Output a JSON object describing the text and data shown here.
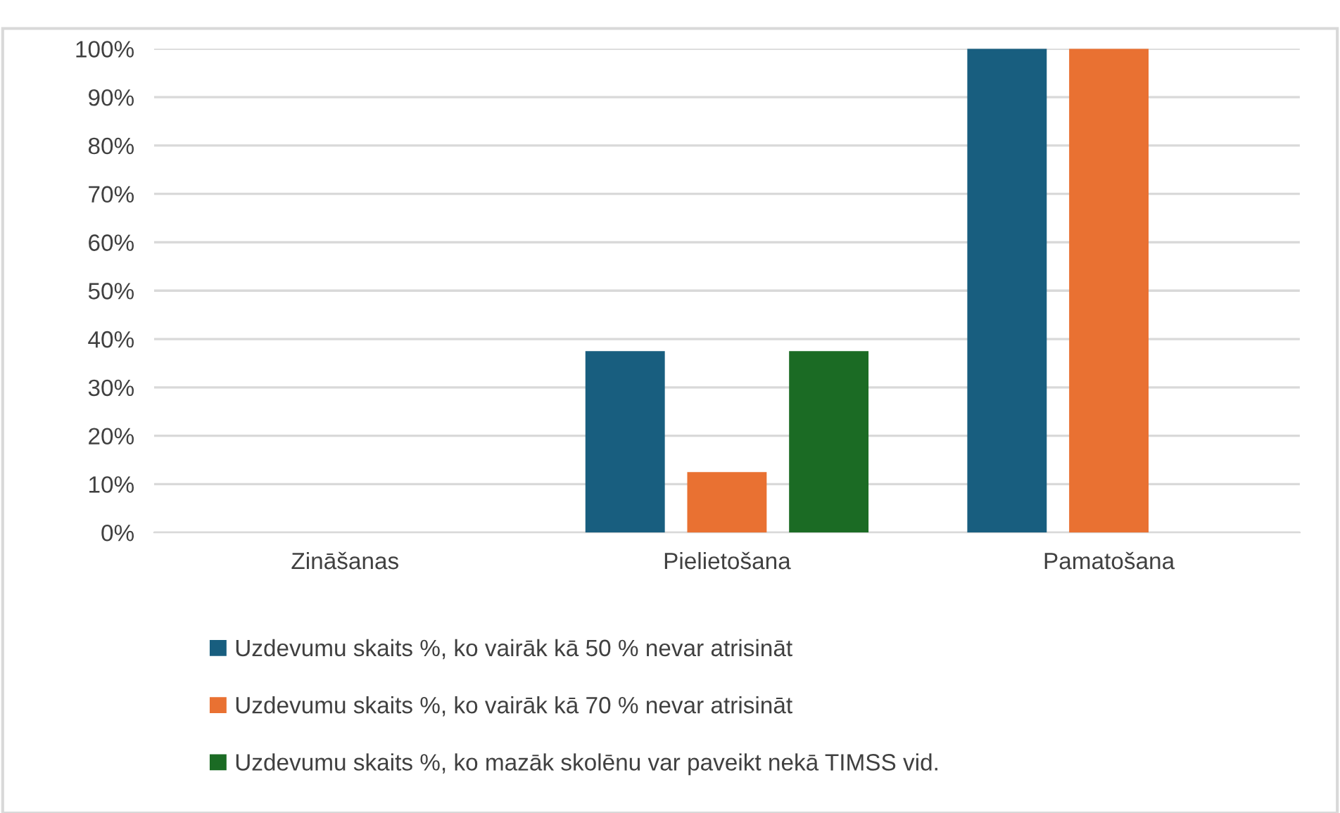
{
  "chart_data": {
    "type": "bar",
    "categories": [
      "Zināšanas",
      "Pielietošana",
      "Pamatošana"
    ],
    "series": [
      {
        "name": "Uzdevumu skaits %, ko vairāk kā 50 % nevar atrisināt",
        "color": "#185e7f",
        "values": [
          0,
          37.5,
          100
        ]
      },
      {
        "name": "Uzdevumu skaits %, ko vairāk kā 70 % nevar atrisināt",
        "color": "#e97132",
        "values": [
          0,
          12.5,
          100
        ]
      },
      {
        "name": "Uzdevumu skaits %, ko mazāk skolēnu var paveikt nekā TIMSS vid.",
        "color": "#1b6b24",
        "values": [
          0,
          37.5,
          0
        ]
      }
    ],
    "ylim": [
      0,
      100
    ],
    "yticks": [
      {
        "value": 0,
        "label": "0%"
      },
      {
        "value": 10,
        "label": "10%"
      },
      {
        "value": 20,
        "label": "20%"
      },
      {
        "value": 30,
        "label": "30%"
      },
      {
        "value": 40,
        "label": "40%"
      },
      {
        "value": 50,
        "label": "50%"
      },
      {
        "value": 60,
        "label": "60%"
      },
      {
        "value": 70,
        "label": "70%"
      },
      {
        "value": 80,
        "label": "80%"
      },
      {
        "value": 90,
        "label": "90%"
      },
      {
        "value": 100,
        "label": "100%"
      }
    ],
    "grid": "y",
    "legend": "bottom"
  }
}
